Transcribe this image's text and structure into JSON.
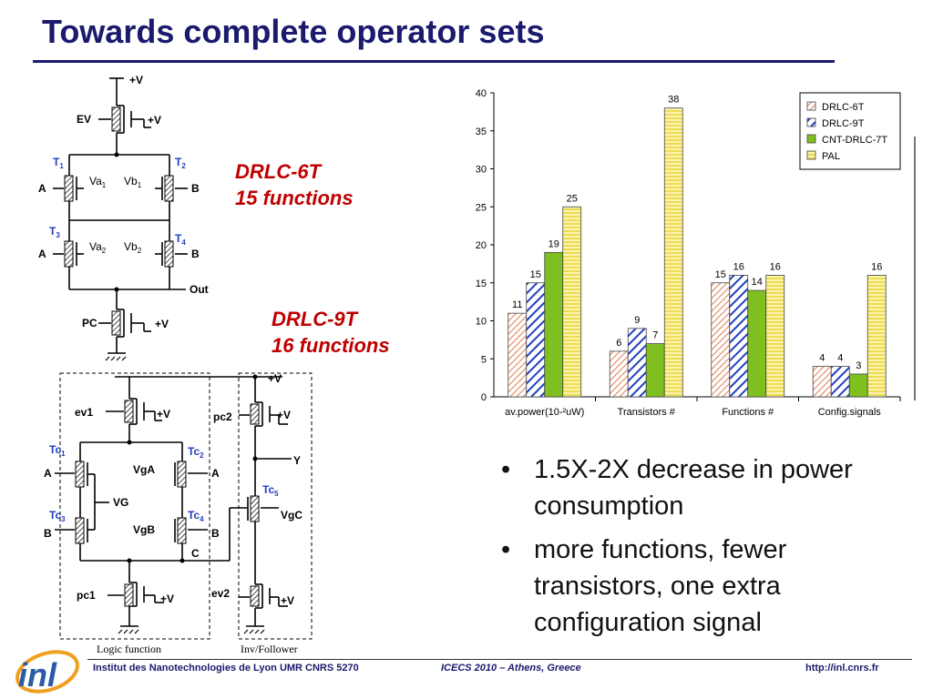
{
  "title": "Towards complete operator sets",
  "captions": {
    "drlc6t_name": "DRLC-6T",
    "drlc6t_funcs": "15 functions",
    "drlc9t_name": "DRLC-9T",
    "drlc9t_funcs": "16 functions"
  },
  "circuit6t": {
    "vdd": "+V",
    "ev": "EV",
    "ev_bias": "+V",
    "t1": "T",
    "t1_sub": "1",
    "t2": "T",
    "t2_sub": "2",
    "t3": "T",
    "t3_sub": "3",
    "t4": "T",
    "t4_sub": "4",
    "a_top": "A",
    "b_top": "B",
    "a_bot": "A",
    "b_bot": "B",
    "va1": "Va",
    "va1_sub": "1",
    "vb1": "Vb",
    "vb1_sub": "1",
    "va2": "Va",
    "va2_sub": "2",
    "vb2": "Vb",
    "vb2_sub": "2",
    "out": "Out",
    "pc": "PC",
    "pc_bias": "+V"
  },
  "circuit9t": {
    "vdd": "+V",
    "ev1": "ev1",
    "ev1_bias": "+V",
    "pc2": "pc2",
    "pc2_bias": "+V",
    "tc1": "Tc",
    "tc1_sub": "1",
    "tc2": "Tc",
    "tc2_sub": "2",
    "tc3": "Tc",
    "tc3_sub": "3",
    "tc4": "Tc",
    "tc4_sub": "4",
    "tc5": "Tc",
    "tc5_sub": "5",
    "a_left": "A",
    "a_right": "A",
    "b_left": "B",
    "b_right": "B",
    "vga": "VgA",
    "vgb": "VgB",
    "vg": "VG",
    "c": "C",
    "y": "Y",
    "vgc": "VgC",
    "pc1": "pc1",
    "pc1_bias": "+V",
    "ev2": "ev2",
    "ev2_bias": "+V",
    "logic_label": "Logic function",
    "inv_label": "Inv/Follower"
  },
  "chart_data": {
    "type": "bar",
    "categories": [
      "av.power(10-²uW)",
      "Transistors #",
      "Functions #",
      "Config.signals"
    ],
    "series": [
      {
        "name": "DRLC-6T",
        "values": [
          11,
          6,
          15,
          4
        ]
      },
      {
        "name": "DRLC-9T",
        "values": [
          15,
          9,
          16,
          4
        ]
      },
      {
        "name": "CNT-DRLC-7T",
        "values": [
          19,
          7,
          14,
          3
        ]
      },
      {
        "name": "PAL",
        "values": [
          25,
          38,
          16,
          16
        ]
      }
    ],
    "ylim": [
      0,
      40
    ],
    "yticks": [
      0,
      5,
      10,
      15,
      20,
      25,
      30,
      35,
      40
    ],
    "legend_position": "top-right",
    "grid": false,
    "colors": [
      "#f4a582",
      "#1f3fbf",
      "#7fbf1f",
      "#f0e060"
    ]
  },
  "bullets": [
    "1.5X-2X decrease in power consumption",
    "more functions, fewer transistors, one extra configuration signal"
  ],
  "footer": {
    "logo": "inl",
    "institute": "Institut des Nanotechnologies de Lyon UMR CNRS 5270",
    "conference": "ICECS 2010 – Athens, Greece",
    "url": "http://inl.cnrs.fr"
  },
  "colors": {
    "title": "#1a1a6e",
    "caption": "#c00000",
    "transistor_label": "#1f3fbf"
  }
}
